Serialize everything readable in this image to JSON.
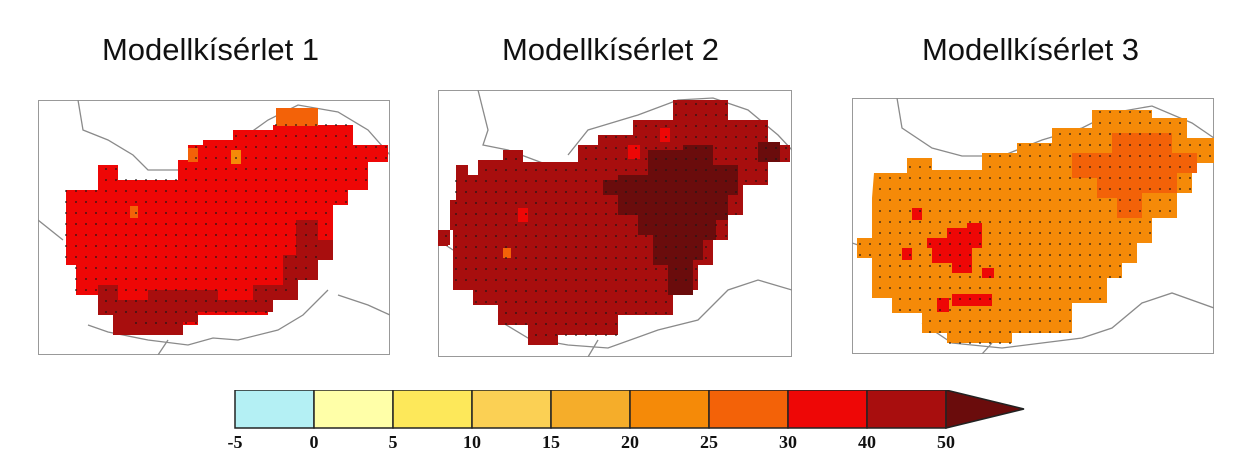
{
  "panels": [
    {
      "title": "Modellkísérlet 1"
    },
    {
      "title": "Modellkísérlet 2"
    },
    {
      "title": "Modellkísérlet 3"
    }
  ],
  "legend": {
    "bins": [
      {
        "from": -5,
        "to": 0,
        "color": "#b4f0f4"
      },
      {
        "from": 0,
        "to": 5,
        "color": "#ffffa8"
      },
      {
        "from": 5,
        "to": 10,
        "color": "#fde85a"
      },
      {
        "from": 10,
        "to": 15,
        "color": "#fbd054"
      },
      {
        "from": 15,
        "to": 20,
        "color": "#f5ad2a"
      },
      {
        "from": 20,
        "to": 25,
        "color": "#f58a08"
      },
      {
        "from": 25,
        "to": 30,
        "color": "#f36208"
      },
      {
        "from": 30,
        "to": 40,
        "color": "#ee0706"
      },
      {
        "from": 40,
        "to": 50,
        "color": "#a80e0e"
      }
    ],
    "overflow_color": "#6a0c0c",
    "tick_labels": [
      "-5",
      "0",
      "5",
      "10",
      "15",
      "20",
      "25",
      "30",
      "40",
      "50"
    ]
  }
}
